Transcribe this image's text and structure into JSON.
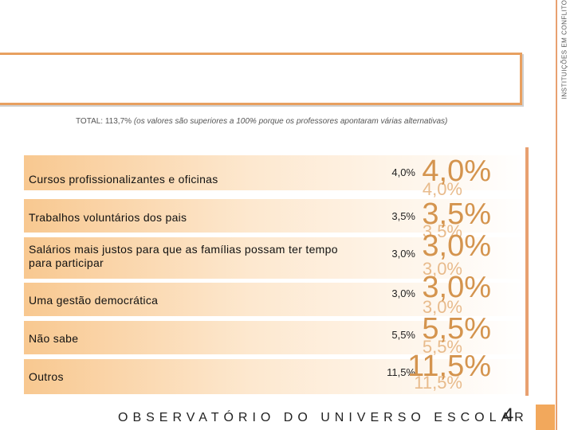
{
  "side_label": "INSTITUIÇÕES EM CONFLITO",
  "note": {
    "total": "TOTAL: 113,7%",
    "explanation": "(os valores são superiores a 100% porque os professores apontaram várias alternativas)"
  },
  "rows": [
    {
      "label": "Cursos profissionalizantes e oficinas",
      "value": "4,0%"
    },
    {
      "label": "Trabalhos voluntários dos pais",
      "value": "3,5%"
    },
    {
      "label": "Salários mais justos para que as famílias possam ter tempo para participar",
      "value": "3,0%"
    },
    {
      "label": "Uma gestão democrática",
      "value": "3,0%"
    },
    {
      "label": "Não sabe",
      "value": "5,5%"
    },
    {
      "label": "Outros",
      "value": "11,5%"
    }
  ],
  "footer": "OBSERVATÓRIO DO UNIVERSO ESCOLAR",
  "page_number": "4",
  "colors": {
    "accent": "#e8a070",
    "value_text": "#d4944e",
    "bar_start": "#f8c890"
  }
}
